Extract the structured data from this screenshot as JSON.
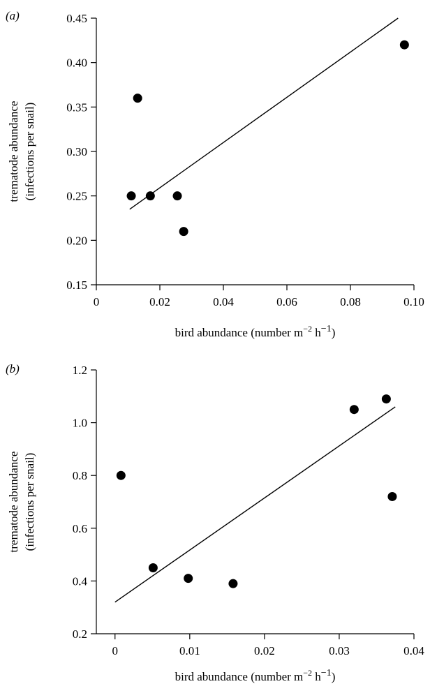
{
  "chart_data": [
    {
      "type": "scatter",
      "panel_label": "(a)",
      "xlabel": "bird abundance (number m",
      "xlabel_sup1": "−2",
      "xlabel_mid": " h",
      "xlabel_sup2": "−1",
      "xlabel_end": ")",
      "ylabel_line1": "trematode abundance",
      "ylabel_line2": "(infections per snail)",
      "xlim": [
        0,
        0.1
      ],
      "ylim": [
        0.15,
        0.45
      ],
      "xticks": [
        0,
        0.02,
        0.04,
        0.06,
        0.08,
        0.1
      ],
      "xtick_labels": [
        "0",
        "0.02",
        "0.04",
        "0.06",
        "0.08",
        "0.10"
      ],
      "yticks": [
        0.15,
        0.2,
        0.25,
        0.3,
        0.35,
        0.4,
        0.45
      ],
      "ytick_labels": [
        "0.15",
        "0.20",
        "0.25",
        "0.30",
        "0.35",
        "0.40",
        "0.45"
      ],
      "points": [
        {
          "x": 0.011,
          "y": 0.25
        },
        {
          "x": 0.013,
          "y": 0.36
        },
        {
          "x": 0.017,
          "y": 0.25
        },
        {
          "x": 0.0255,
          "y": 0.25
        },
        {
          "x": 0.0275,
          "y": 0.21
        },
        {
          "x": 0.097,
          "y": 0.42
        }
      ],
      "trendline": [
        {
          "x": 0.0105,
          "y": 0.235
        },
        {
          "x": 0.095,
          "y": 0.45
        }
      ]
    },
    {
      "type": "scatter",
      "panel_label": "(b)",
      "xlabel": "bird abundance (number m",
      "xlabel_sup1": "−2",
      "xlabel_mid": " h",
      "xlabel_sup2": "−1",
      "xlabel_end": ")",
      "ylabel_line1": "trematode abundance",
      "ylabel_line2": "(infections per snail)",
      "xlim": [
        -0.0025,
        0.04
      ],
      "ylim": [
        0.2,
        1.2
      ],
      "xticks": [
        0,
        0.01,
        0.02,
        0.03,
        0.04
      ],
      "xtick_labels": [
        "0",
        "0.01",
        "0.02",
        "0.03",
        "0.04"
      ],
      "yticks": [
        0.2,
        0.4,
        0.6,
        0.8,
        1.0,
        1.2
      ],
      "ytick_labels": [
        "0.2",
        "0.4",
        "0.6",
        "0.8",
        "1.0",
        "1.2"
      ],
      "points": [
        {
          "x": 0.0008,
          "y": 0.8
        },
        {
          "x": 0.0051,
          "y": 0.45
        },
        {
          "x": 0.0098,
          "y": 0.41
        },
        {
          "x": 0.0158,
          "y": 0.39
        },
        {
          "x": 0.032,
          "y": 1.05
        },
        {
          "x": 0.0363,
          "y": 1.09
        },
        {
          "x": 0.0371,
          "y": 0.72
        }
      ],
      "trendline": [
        {
          "x": 0,
          "y": 0.32
        },
        {
          "x": 0.0375,
          "y": 1.06
        }
      ]
    }
  ]
}
